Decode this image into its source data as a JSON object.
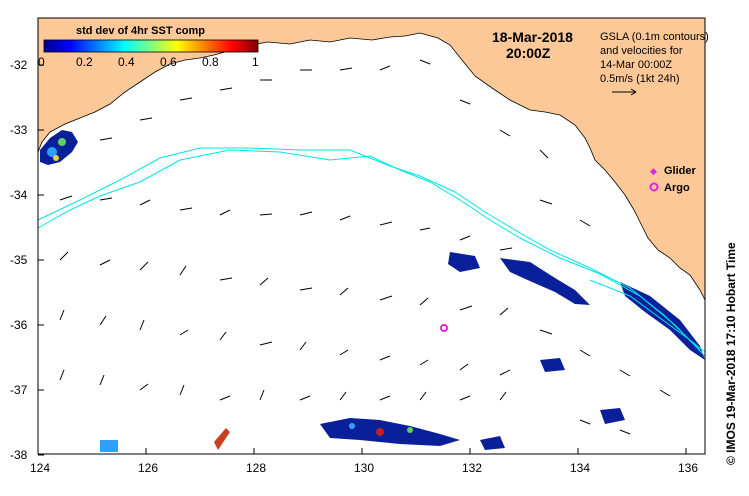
{
  "map": {
    "legend_title": "std dev of 4hr SST comp",
    "colorbar_ticks": [
      "0",
      "0.2",
      "0.4",
      "0.6",
      "0.8",
      "1"
    ],
    "date": "18-Mar-2018",
    "time": "20:00Z",
    "info_lines": [
      "GSLA (0.1m contours)",
      "and velocities for",
      "14-Mar 00:00Z",
      "0.5m/s (1kt 24h)"
    ],
    "markers": {
      "glider": "Glider",
      "argo": "Argo"
    },
    "credit": "© IMOS 19-Mar-2018 17:10 Hobart Time",
    "lat_labels": [
      "-32",
      "-33",
      "-34",
      "-35",
      "-36",
      "-37",
      "-38"
    ],
    "lon_labels": [
      "124",
      "126",
      "128",
      "130",
      "132",
      "134",
      "136"
    ],
    "colors": {
      "land": "#fcc898",
      "contour": "#00e5e5",
      "glider": "#e020e0",
      "argo": "#e020e0",
      "sst_dark": "#0a1f9a"
    }
  }
}
